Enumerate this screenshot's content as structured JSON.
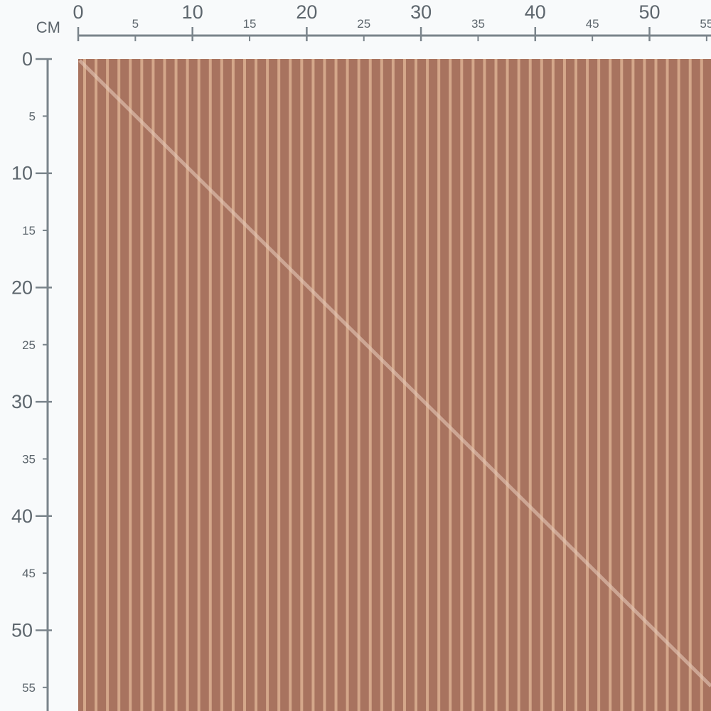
{
  "ruler": {
    "unit_label": "CM",
    "color": "#7a848b",
    "top_major_labels": [
      "0",
      "10",
      "20",
      "30",
      "40",
      "50"
    ],
    "top_minor_labels": [
      "5",
      "15",
      "25",
      "35",
      "45",
      "55"
    ],
    "left_major_labels": [
      "0",
      "10",
      "20",
      "30",
      "40",
      "50"
    ],
    "left_minor_labels": [
      "5",
      "15",
      "25",
      "35",
      "45",
      "55"
    ]
  },
  "fabric": {
    "pattern": "vertical pinstripes",
    "base_color": "#a8735f",
    "stripe_color": "#dcb092",
    "diagonal_highlight_color": "#e6c9b8"
  }
}
